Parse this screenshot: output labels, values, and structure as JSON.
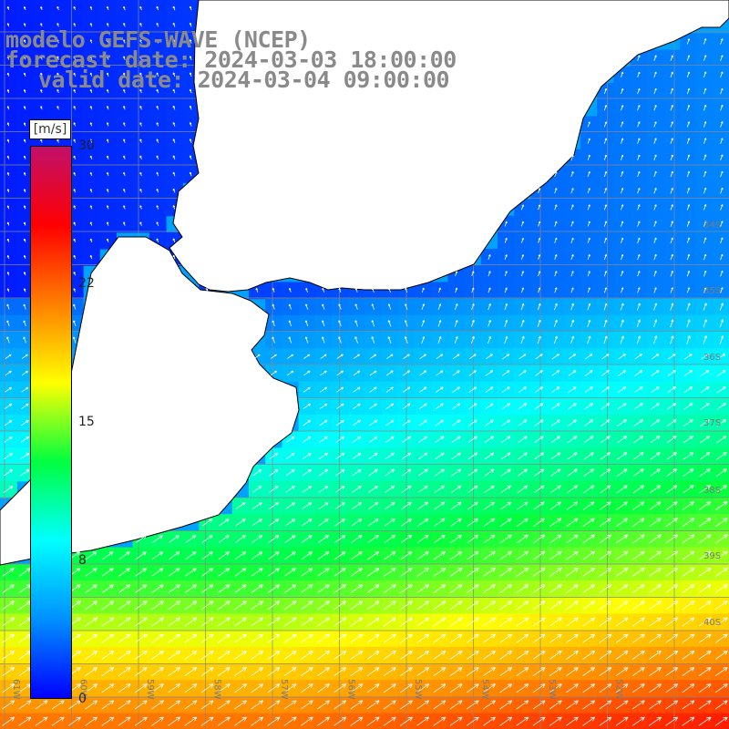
{
  "title": {
    "line1": "modelo GEFS-WAVE (NCEP)",
    "line2": "forecast date: 2024-03-03 18:00:00",
    "line3": "valid date: 2024-03-04 09:00:00"
  },
  "colorbar": {
    "unit": "[m/s]",
    "ticks": [
      "30",
      "22",
      "15",
      "8",
      "0"
    ],
    "tick_values": [
      30,
      22,
      15,
      8,
      0
    ],
    "range": [
      0,
      30
    ],
    "colors": [
      "#0000ff",
      "#0090ff",
      "#00ffff",
      "#00ff40",
      "#ffff00",
      "#ff8000",
      "#ff0000",
      "#c0106a"
    ]
  },
  "map": {
    "lon_labels": [
      "61W",
      "60W",
      "59W",
      "58W",
      "57W",
      "56W",
      "55W",
      "54W",
      "53W",
      "52W"
    ],
    "lat_labels": [
      "34S",
      "35S",
      "36S",
      "37S",
      "38S",
      "39S",
      "40S"
    ],
    "land_color": "#ffffff",
    "grid_color": "#888888",
    "arrow_color": "#ffffff"
  }
}
